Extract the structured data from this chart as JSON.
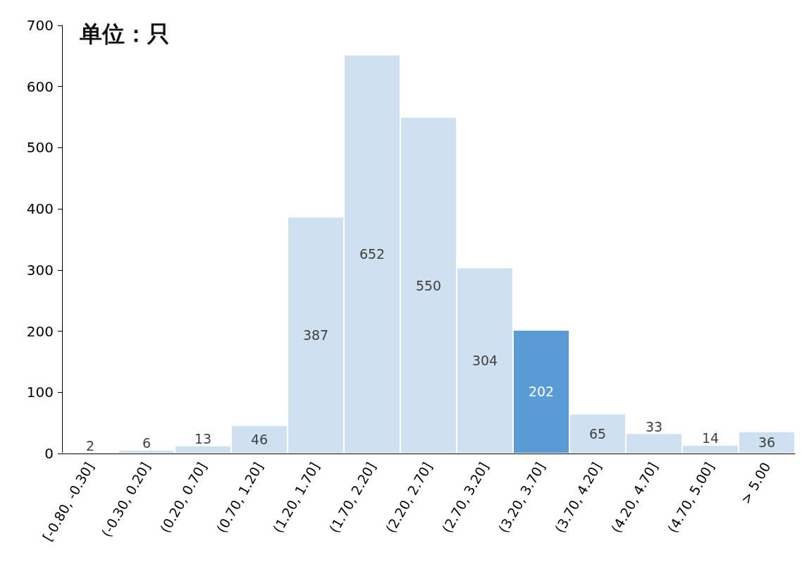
{
  "chart_data": {
    "type": "bar",
    "annotations": [
      "单位：只"
    ],
    "categories": [
      "[-0.80, -0.30]",
      "(-0.30, 0.20]",
      "(0.20, 0.70]",
      "(0.70, 1.20]",
      "(1.20, 1.70]",
      "(1.70, 2.20]",
      "(2.20, 2.70]",
      "(2.70, 3.20]",
      "(3.20, 3.70]",
      "(3.70, 4.20]",
      "(4.20, 4.70]",
      "(4.70, 5.00]",
      "> 5.00"
    ],
    "values": [
      2,
      6,
      13,
      46,
      387,
      652,
      550,
      304,
      202,
      65,
      33,
      14,
      36
    ],
    "colors": [
      "#cfe0f1",
      "#cfe0f1",
      "#cfe0f1",
      "#cfe0f1",
      "#cfe0f1",
      "#cfe0f1",
      "#cfe0f1",
      "#cfe0f1",
      "#5b9bd5",
      "#cfe0f1",
      "#cfe0f1",
      "#cfe0f1",
      "#cfe0f1"
    ],
    "ylim": [
      0,
      700
    ],
    "yticks": [
      0,
      100,
      200,
      300,
      400,
      500,
      600,
      700
    ],
    "data_labels": true
  }
}
